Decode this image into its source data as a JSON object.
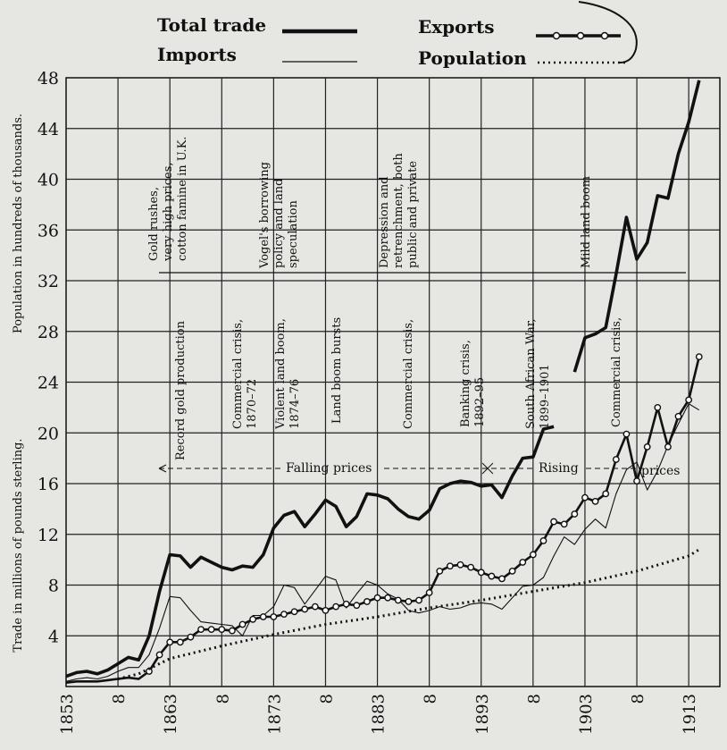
{
  "chart_data": {
    "type": "line",
    "legend": {
      "placement": "top",
      "entries": [
        {
          "label": "Total trade",
          "style": "heavy solid"
        },
        {
          "label": "Imports",
          "style": "thin solid"
        },
        {
          "label": "Exports",
          "style": "medium solid with circle markers"
        },
        {
          "label": "Population",
          "style": "dotted"
        }
      ]
    },
    "ylabel_left_upper": "Population in hundreds of thousands.",
    "ylabel_left_lower": "Trade in millions of pounds sterling.",
    "ylim": [
      0,
      48
    ],
    "y_ticks": [
      "4",
      "8",
      "12",
      "16",
      "20",
      "24",
      "28",
      "32",
      "36",
      "40",
      "44",
      "48"
    ],
    "xlim": [
      1853,
      1916
    ],
    "x_ticks": [
      "1853",
      "8",
      "1863",
      "8",
      "1873",
      "8",
      "1883",
      "8",
      "1893",
      "8",
      "1903",
      "8",
      "1913"
    ],
    "grid": true,
    "series": [
      {
        "name": "Total trade",
        "x": [
          1853,
          1854,
          1855,
          1856,
          1857,
          1858,
          1859,
          1860,
          1861,
          1862,
          1863,
          1864,
          1865,
          1866,
          1867,
          1868,
          1869,
          1870,
          1871,
          1872,
          1873,
          1874,
          1875,
          1876,
          1877,
          1878,
          1879,
          1880,
          1881,
          1882,
          1883,
          1884,
          1885,
          1886,
          1887,
          1888,
          1889,
          1890,
          1891,
          1892,
          1893,
          1894,
          1895,
          1896,
          1897,
          1898,
          1899,
          1900
        ],
        "values": [
          0.8,
          1.1,
          1.2,
          1.0,
          1.3,
          1.8,
          2.3,
          2.1,
          4.0,
          7.5,
          10.4,
          10.3,
          9.4,
          10.2,
          9.8,
          9.4,
          9.2,
          9.5,
          9.4,
          10.4,
          12.5,
          13.5,
          13.8,
          12.6,
          13.6,
          14.7,
          14.2,
          12.6,
          13.4,
          15.2,
          15.1,
          14.8,
          14.0,
          13.4,
          13.2,
          13.9,
          15.6,
          16.0,
          16.2,
          16.1,
          15.8,
          15.9,
          14.9,
          16.6,
          18.0,
          18.1,
          20.3,
          20.5
        ]
      },
      {
        "name": "Total trade (upper scale, from 1902)",
        "x": [
          1902,
          1903,
          1904,
          1905,
          1906,
          1907,
          1908,
          1909,
          1910,
          1911,
          1912,
          1913,
          1914
        ],
        "values": [
          24.8,
          27.5,
          27.8,
          28.3,
          32.5,
          37.0,
          33.7,
          35.0,
          38.7,
          38.5,
          42.0,
          44.5,
          47.8
        ]
      },
      {
        "name": "Imports",
        "x": [
          1853,
          1854,
          1855,
          1856,
          1857,
          1858,
          1859,
          1860,
          1861,
          1862,
          1863,
          1864,
          1865,
          1866,
          1867,
          1868,
          1869,
          1870,
          1871,
          1872,
          1873,
          1874,
          1875,
          1876,
          1877,
          1878,
          1879,
          1880,
          1881,
          1882,
          1883,
          1884,
          1885,
          1886,
          1887,
          1888,
          1889,
          1890,
          1891,
          1892,
          1893,
          1894,
          1895,
          1896,
          1897,
          1898,
          1899,
          1900,
          1901,
          1902,
          1903,
          1904,
          1905,
          1906,
          1907,
          1908,
          1909,
          1910,
          1911,
          1912,
          1913,
          1914
        ],
        "values": [
          0.4,
          0.6,
          0.7,
          0.6,
          0.8,
          1.2,
          1.5,
          1.5,
          2.5,
          4.6,
          7.1,
          7.0,
          6.0,
          5.1,
          5.0,
          4.9,
          4.8,
          4.0,
          5.6,
          5.6,
          6.3,
          8.0,
          7.8,
          6.5,
          7.6,
          8.7,
          8.4,
          6.2,
          7.3,
          8.3,
          8.0,
          7.3,
          6.9,
          6.0,
          5.8,
          6.0,
          6.3,
          6.1,
          6.2,
          6.5,
          6.6,
          6.5,
          6.1,
          7.0,
          7.9,
          8.0,
          8.6,
          10.3,
          11.8,
          11.2,
          12.4,
          13.2,
          12.5,
          15.2,
          17.1,
          17.7,
          15.5,
          17.0,
          19.0,
          20.7,
          22.3,
          21.8
        ]
      },
      {
        "name": "Exports",
        "x": [
          1853,
          1854,
          1855,
          1856,
          1857,
          1858,
          1859,
          1860,
          1861,
          1862,
          1863,
          1864,
          1865,
          1866,
          1867,
          1868,
          1869,
          1870,
          1871,
          1872,
          1873,
          1874,
          1875,
          1876,
          1877,
          1878,
          1879,
          1880,
          1881,
          1882,
          1883,
          1884,
          1885,
          1886,
          1887,
          1888,
          1889,
          1890,
          1891,
          1892,
          1893,
          1894,
          1895,
          1896,
          1897,
          1898,
          1899,
          1900,
          1901,
          1902,
          1903,
          1904,
          1905,
          1906,
          1907,
          1908,
          1909,
          1910,
          1911,
          1912,
          1913,
          1914
        ],
        "values": [
          0.3,
          0.4,
          0.4,
          0.4,
          0.5,
          0.6,
          0.7,
          0.6,
          1.2,
          2.5,
          3.5,
          3.5,
          3.9,
          4.5,
          4.5,
          4.5,
          4.4,
          4.9,
          5.3,
          5.5,
          5.5,
          5.7,
          5.9,
          6.1,
          6.3,
          6.0,
          6.3,
          6.5,
          6.4,
          6.7,
          7.0,
          7.0,
          6.8,
          6.7,
          6.8,
          7.4,
          9.1,
          9.5,
          9.6,
          9.4,
          9.0,
          8.7,
          8.5,
          9.1,
          9.8,
          10.4,
          11.5,
          13.0,
          12.8,
          13.6,
          14.9,
          14.6,
          15.2,
          17.9,
          19.9,
          16.2,
          18.9,
          22.0,
          18.9,
          21.3,
          22.6,
          26.0
        ]
      },
      {
        "name": "Population",
        "x": [
          1858,
          1860,
          1863,
          1868,
          1873,
          1878,
          1883,
          1888,
          1893,
          1898,
          1903,
          1908,
          1913,
          1914
        ],
        "values": [
          0.6,
          1.0,
          2.2,
          3.2,
          4.1,
          4.9,
          5.5,
          6.2,
          6.8,
          7.5,
          8.2,
          9.1,
          10.3,
          10.8
        ]
      }
    ],
    "annotations": {
      "falling_prices": "Falling prices",
      "rising": "Rising",
      "prices": "prices",
      "upper_1": [
        "Gold rushes,",
        "very high prices,",
        "cotton famine in U.K."
      ],
      "upper_2": [
        "Vogel's borrowing",
        "policy and land",
        "speculation"
      ],
      "upper_3": [
        "Depression and",
        "retrenchment, both",
        "public and private"
      ],
      "upper_4": "Mild land boom",
      "lower_1": "Record gold production",
      "lower_2": [
        "Commercial crisis,",
        "1870–72"
      ],
      "lower_3": [
        "Violent land boom,",
        "1874–76"
      ],
      "lower_4": "Land boom bursts",
      "lower_5": "Commercial crisis,",
      "lower_6": [
        "Banking crisis,",
        "1892–95"
      ],
      "lower_7": [
        "South African War,",
        "1899–1901"
      ],
      "lower_8": "Commercial crisis,"
    }
  }
}
